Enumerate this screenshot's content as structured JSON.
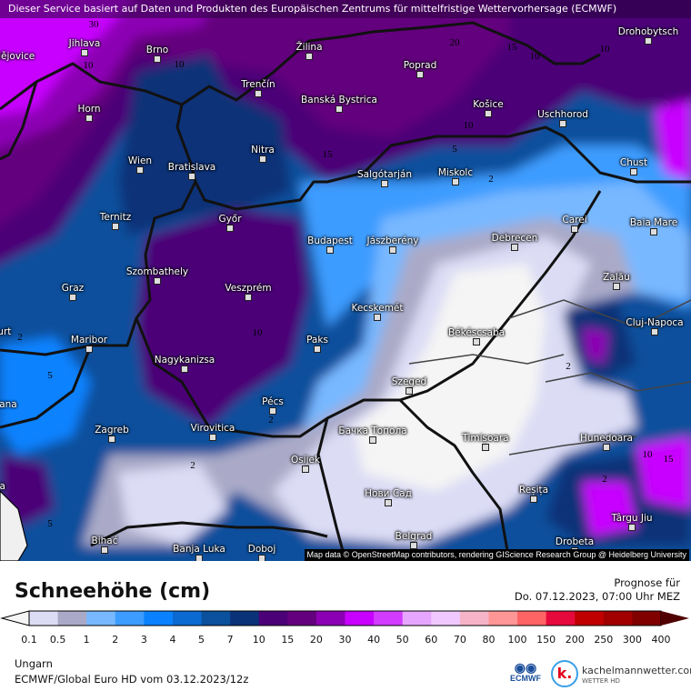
{
  "header": {
    "disclaimer": "Dieser Service basiert auf Daten und Produkten des Europäischen Zentrums für mittelfristige Wettervorhersage (ECMWF)"
  },
  "map": {
    "region": "Ungarn",
    "attribution": "Map data © OpenStreetMap contributors, rendering GIScience Research Group @ Heidelberg University",
    "cities": [
      "Jihlava",
      "Brno",
      "České Budějovice",
      "Horn",
      "Wien",
      "Bratislava",
      "Trenčín",
      "Žilina",
      "Nitra",
      "Győr",
      "Banská Bystrica",
      "Poprad",
      "Košice",
      "Uschhorod",
      "Drohobytsch",
      "Salgótarján",
      "Miskolc",
      "Chust",
      "Debrecen",
      "Carei",
      "Baia Mare",
      "Jászberény",
      "Budapest",
      "Zalău",
      "Szombathely",
      "Graz",
      "Veszprém",
      "Ternitz",
      "Kecskemét",
      "Békéscsaba",
      "Cluj-Napoca",
      "Paks",
      "Maribor",
      "Nagykanizsa",
      "Klagenfurt",
      "Ljubljana",
      "Szeged",
      "Pécs",
      "Virovitica",
      "Zagreb",
      "Osijek",
      "Бачка Топола",
      "Timișoara",
      "Hunedoara",
      "Rijeka",
      "Reșița",
      "Нови Сад",
      "Târgu Jiu",
      "Bihać",
      "Banja Luka",
      "Doboj",
      "Belgrad",
      "Drobeta"
    ],
    "contour_labels": [
      "30",
      "10",
      "15",
      "20",
      "15",
      "10",
      "10",
      "10",
      "5",
      "2",
      "10",
      "5",
      "10",
      "2",
      "2",
      "5",
      "2",
      "2",
      "10",
      "15",
      "2"
    ]
  },
  "legend": {
    "title": "Schneehöhe (cm)",
    "ticks": [
      "0.1",
      "0.5",
      "1",
      "2",
      "3",
      "4",
      "5",
      "7",
      "10",
      "15",
      "20",
      "30",
      "40",
      "50",
      "60",
      "70",
      "80",
      "100",
      "150",
      "200",
      "250",
      "300",
      "400"
    ],
    "colors": [
      "#dcdcf5",
      "#aaaac8",
      "#78b8ff",
      "#3c9cff",
      "#0a82ff",
      "#0a6ad2",
      "#0a509c",
      "#0a3278",
      "#4b0078",
      "#64007d",
      "#8c00b4",
      "#c800ff",
      "#d23cff",
      "#e6a5ff",
      "#f0c8ff",
      "#f5b4c8",
      "#ff9696",
      "#ff6464",
      "#e60a3c",
      "#c00000",
      "#a00000",
      "#800000"
    ],
    "under_color": "#f5f5f5",
    "over_color": "#500000"
  },
  "forecast": {
    "label": "Prognose für",
    "valid": "Do. 07.12.2023, 07:00 Uhr MEZ"
  },
  "footer": {
    "region": "Ungarn",
    "model_run": "ECMWF/Global Euro HD vom  03.12.2023/12z"
  },
  "logos": {
    "ecmwf": "ECMWF",
    "kachelmann_letter": "k.",
    "kachelmann": "kachelmannwetter.com",
    "kachelmann_sub": "WETTER HD"
  }
}
